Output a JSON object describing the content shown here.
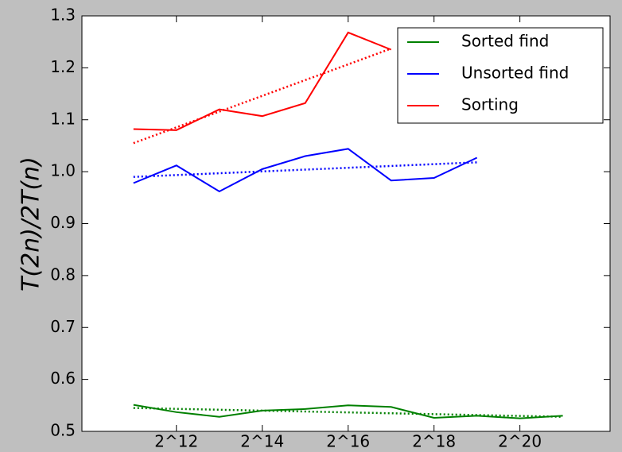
{
  "chart_data": {
    "type": "line",
    "ylabel": "T(2n)/2T(n)",
    "xlim": [
      9.8,
      22.1
    ],
    "ylim": [
      0.5,
      1.3
    ],
    "xticks": [
      {
        "value": 12,
        "label": "2^12"
      },
      {
        "value": 14,
        "label": "2^14"
      },
      {
        "value": 16,
        "label": "2^16"
      },
      {
        "value": 18,
        "label": "2^18"
      },
      {
        "value": 20,
        "label": "2^20"
      }
    ],
    "yticks": [
      0.5,
      0.6,
      0.7,
      0.8,
      0.9,
      {
        "value": 1,
        "label": "1.0"
      },
      1.1,
      1.2,
      1.3
    ],
    "legend": "upper right",
    "series": [
      {
        "name": "Sorted find",
        "color": "#008000",
        "x": [
          11,
          12,
          13,
          14,
          15,
          16,
          17,
          18,
          19,
          20,
          21
        ],
        "values": [
          0.551,
          0.537,
          0.528,
          0.54,
          0.543,
          0.55,
          0.547,
          0.526,
          0.53,
          0.525,
          0.53
        ],
        "trend": {
          "x": [
            11,
            21
          ],
          "values": [
            0.545,
            0.528
          ]
        }
      },
      {
        "name": "Unsorted find",
        "color": "#0000ff",
        "x": [
          11,
          12,
          13,
          14,
          15,
          16,
          17,
          18,
          19
        ],
        "values": [
          0.978,
          1.012,
          0.962,
          1.005,
          1.03,
          1.044,
          0.983,
          0.988,
          1.027
        ],
        "trend": {
          "x": [
            11,
            19
          ],
          "values": [
            0.99,
            1.018
          ]
        }
      },
      {
        "name": "Sorting",
        "color": "#ff0000",
        "x": [
          11,
          12,
          13,
          14,
          15,
          16,
          17
        ],
        "values": [
          1.082,
          1.08,
          1.12,
          1.107,
          1.132,
          1.268,
          1.235
        ],
        "trend": {
          "x": [
            11,
            17
          ],
          "values": [
            1.055,
            1.237
          ]
        }
      }
    ]
  }
}
